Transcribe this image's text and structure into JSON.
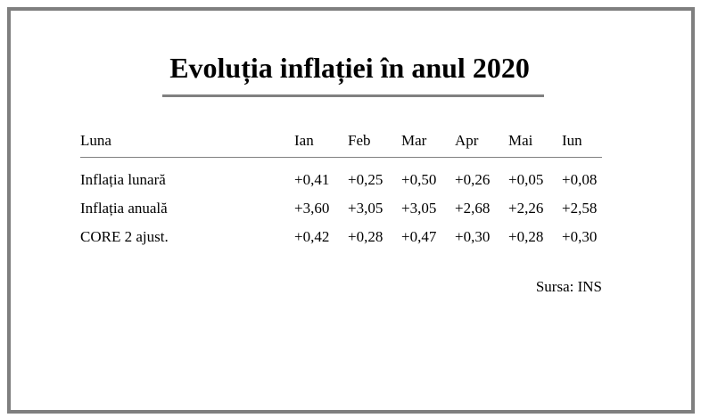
{
  "title": "Evoluția inflației în anul 2020",
  "table": {
    "header": {
      "label": "Luna",
      "months": [
        "Ian",
        "Feb",
        "Mar",
        "Apr",
        "Mai",
        "Iun"
      ]
    },
    "rows": [
      {
        "label": "Inflația lunară",
        "values": [
          "+0,41",
          "+0,25",
          "+0,50",
          "+0,26",
          "+0,05",
          "+0,08"
        ]
      },
      {
        "label": "Inflația anuală",
        "values": [
          "+3,60",
          "+3,05",
          "+3,05",
          "+2,68",
          "+2,26",
          "+2,58"
        ]
      },
      {
        "label": "CORE 2 ajust.",
        "values": [
          "+0,42",
          "+0,28",
          "+0,47",
          "+0,30",
          "+0,28",
          "+0,30"
        ]
      }
    ]
  },
  "source": "Sursa: INS",
  "colors": {
    "frame": "#7f7f7f",
    "rule": "#808080",
    "text": "#000000",
    "background": "#ffffff"
  }
}
